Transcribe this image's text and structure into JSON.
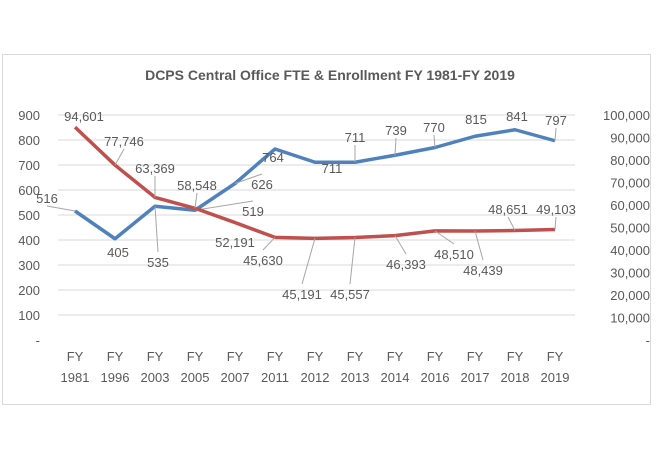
{
  "chart_data": {
    "type": "line",
    "title": "DCPS Central Office FTE & Enrollment FY 1981-FY 2019",
    "categories": [
      [
        "FY",
        "1981"
      ],
      [
        "FY",
        "1996"
      ],
      [
        "FY",
        "2003"
      ],
      [
        "FY",
        "2005"
      ],
      [
        "FY",
        "2007"
      ],
      [
        "FY",
        "2011"
      ],
      [
        "FY",
        "2012"
      ],
      [
        "FY",
        "2013"
      ],
      [
        "FY",
        "2014"
      ],
      [
        "FY",
        "2016"
      ],
      [
        "FY",
        "2017"
      ],
      [
        "FY",
        "2018"
      ],
      [
        "FY",
        "2019"
      ]
    ],
    "series": [
      {
        "axis": "left",
        "color": "#4f81bd",
        "values": [
          516,
          405,
          535,
          519,
          626,
          764,
          711,
          711,
          739,
          770,
          815,
          841,
          797
        ],
        "labels": [
          "516",
          "405",
          "535",
          "519",
          "626",
          "764",
          "711",
          "711",
          "739",
          "770",
          "815",
          "841",
          "797"
        ]
      },
      {
        "axis": "right",
        "color": "#c0504d",
        "values": [
          94601,
          77746,
          63369,
          58548,
          52191,
          45630,
          45191,
          45557,
          46393,
          48510,
          48439,
          48651,
          49103
        ],
        "labels": [
          "94,601",
          "77,746",
          "63,369",
          "58,548",
          "52,191",
          "45,630",
          "45,191",
          "45,557",
          "46,393",
          "48,510",
          "48,439",
          "48,651",
          "49,103"
        ]
      }
    ],
    "y_left": {
      "ylim": [
        0,
        900
      ],
      "ticks": [
        "-",
        "100",
        "200",
        "300",
        "400",
        "500",
        "600",
        "700",
        "800",
        "900"
      ]
    },
    "y_right": {
      "ylim": [
        0,
        100000
      ],
      "ticks": [
        "-",
        "10,000",
        "20,000",
        "30,000",
        "40,000",
        "50,000",
        "60,000",
        "70,000",
        "80,000",
        "90,000",
        "100,000"
      ]
    },
    "grid": true
  }
}
